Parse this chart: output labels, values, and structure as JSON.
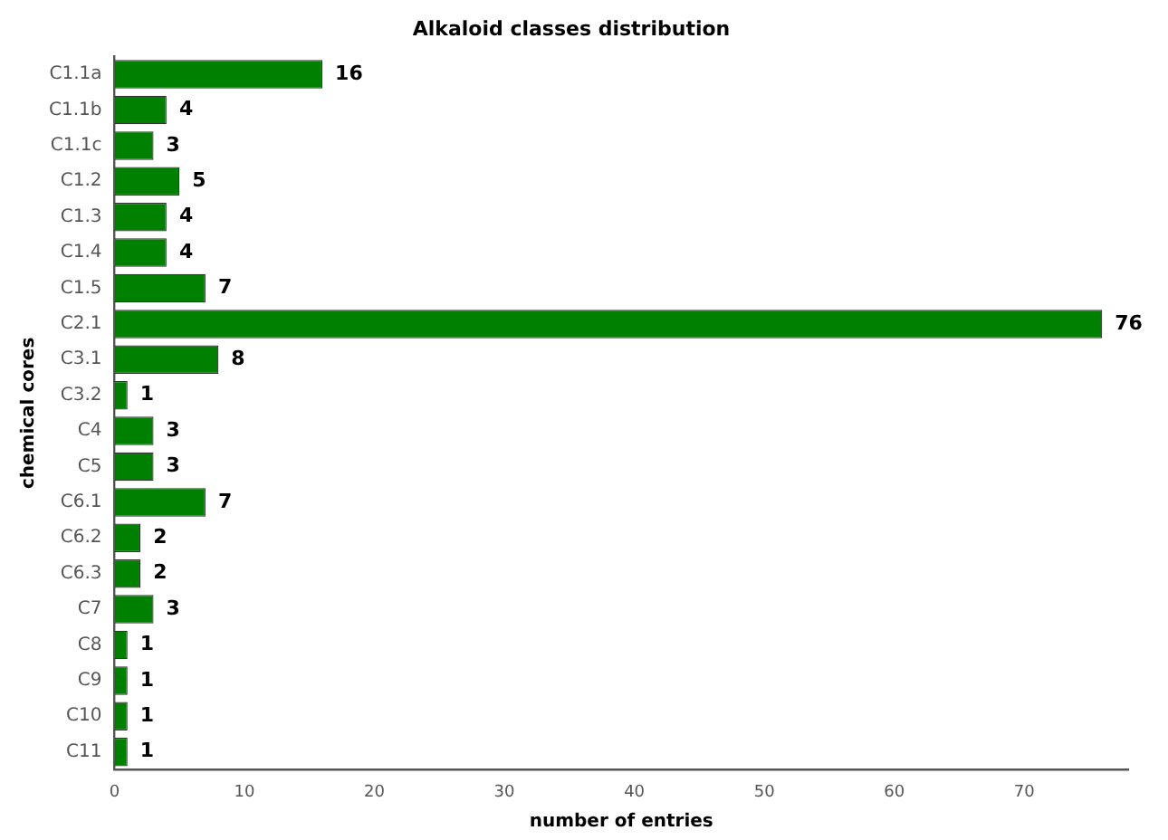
{
  "chart_data": {
    "type": "bar",
    "orientation": "horizontal",
    "title": "Alkaloid classes distribution",
    "xlabel": "number of entries",
    "ylabel": "chemical cores",
    "categories": [
      "C1.1a",
      "C1.1b",
      "C1.1c",
      "C1.2",
      "C1.3",
      "C1.4",
      "C1.5",
      "C2.1",
      "C3.1",
      "C3.2",
      "C4",
      "C5",
      "C6.1",
      "C6.2",
      "C6.3",
      "C7",
      "C8",
      "C9",
      "C10",
      "C11"
    ],
    "values": [
      16,
      4,
      3,
      5,
      4,
      4,
      7,
      76,
      8,
      1,
      3,
      3,
      7,
      2,
      2,
      3,
      1,
      1,
      1,
      1
    ],
    "color": "#008000",
    "xlim": [
      0,
      78
    ],
    "xticks": [
      0,
      10,
      20,
      30,
      40,
      50,
      60,
      70
    ],
    "grid": false,
    "legend": false,
    "data_labels": true
  }
}
